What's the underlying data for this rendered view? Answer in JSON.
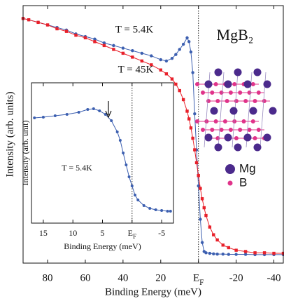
{
  "chart_data": [
    {
      "type": "line",
      "title": "MgB₂",
      "xlabel": "Binding Energy (meV)",
      "ylabel": "Intensity (arb. units)",
      "x": [
        93,
        90,
        85,
        80,
        75,
        70,
        65,
        60,
        55,
        50,
        45,
        40,
        35,
        30,
        25,
        20,
        17,
        14,
        12,
        10,
        8,
        6,
        5,
        4,
        3,
        2,
        1,
        0,
        -1,
        -2,
        -3,
        -4,
        -6,
        -8,
        -10,
        -13,
        -16,
        -20,
        -25,
        -30,
        -35,
        -40,
        -45
      ],
      "series": [
        {
          "name": "T = 5.4K",
          "color": "#3c5fb0",
          "marker": "circle",
          "values": [
            95,
            94.5,
            93.5,
            92.5,
            91.5,
            90.5,
            89,
            88,
            87,
            85.5,
            84.5,
            83.5,
            82.5,
            81.5,
            80.5,
            79,
            78.5,
            79.5,
            81,
            83,
            85,
            87.5,
            86,
            82,
            74,
            58,
            44,
            30,
            17,
            8,
            4.5,
            4,
            3.8,
            3.6,
            3.5,
            3.5,
            3.4,
            3.4,
            3.4,
            3.3,
            3.3,
            3.3,
            3.3
          ]
        },
        {
          "name": "T =  45K",
          "color": "#e8202a",
          "marker": "square",
          "values": [
            95,
            94.5,
            93.5,
            92.5,
            91,
            90,
            88.5,
            87.5,
            86,
            84.5,
            83,
            81.5,
            80,
            78.5,
            77,
            75,
            73.5,
            71.5,
            69.5,
            67,
            63.5,
            59,
            56,
            52.5,
            48.5,
            44,
            39,
            34,
            29,
            25,
            21.5,
            18.5,
            14,
            11,
            9,
            7,
            6,
            5,
            4.5,
            4,
            4,
            3.8,
            3.8
          ]
        }
      ],
      "xlim": [
        93,
        -45
      ],
      "ylim": [
        0,
        100
      ],
      "xticks": [
        80,
        60,
        40,
        20,
        {
          "value": 0,
          "label": "EF"
        },
        -20,
        -40
      ],
      "vline": 0,
      "structure_legend": [
        {
          "name": "Mg",
          "color": "#4b2a8c"
        },
        {
          "name": "B",
          "color": "#e0338a"
        }
      ]
    },
    {
      "type": "line",
      "xlabel": "Binding Energy (meV)",
      "ylabel": "Intensity (arb. unit)",
      "x": [
        16.5,
        15,
        13,
        11,
        9,
        7.5,
        6.5,
        5.5,
        4.5,
        3.5,
        2.5,
        2,
        1.5,
        1,
        0.5,
        0,
        -0.5,
        -1,
        -2,
        -3,
        -4,
        -5,
        -6,
        -6.5
      ],
      "series": [
        {
          "name": "T = 5.4K",
          "color": "#3c5fb0",
          "marker": "circle",
          "values": [
            75,
            75.5,
            76.5,
            77.5,
            79,
            81,
            81.5,
            80,
            77.5,
            73,
            65,
            59,
            50,
            41.5,
            33,
            26.5,
            20,
            16.5,
            12.5,
            10.5,
            9.5,
            9,
            8.5,
            8.5
          ]
        }
      ],
      "xlim": [
        17,
        -7
      ],
      "ylim": [
        0,
        100
      ],
      "xticks": [
        15,
        10,
        5,
        {
          "value": 0,
          "label": "EF"
        },
        -5
      ],
      "vline": 0
    }
  ]
}
